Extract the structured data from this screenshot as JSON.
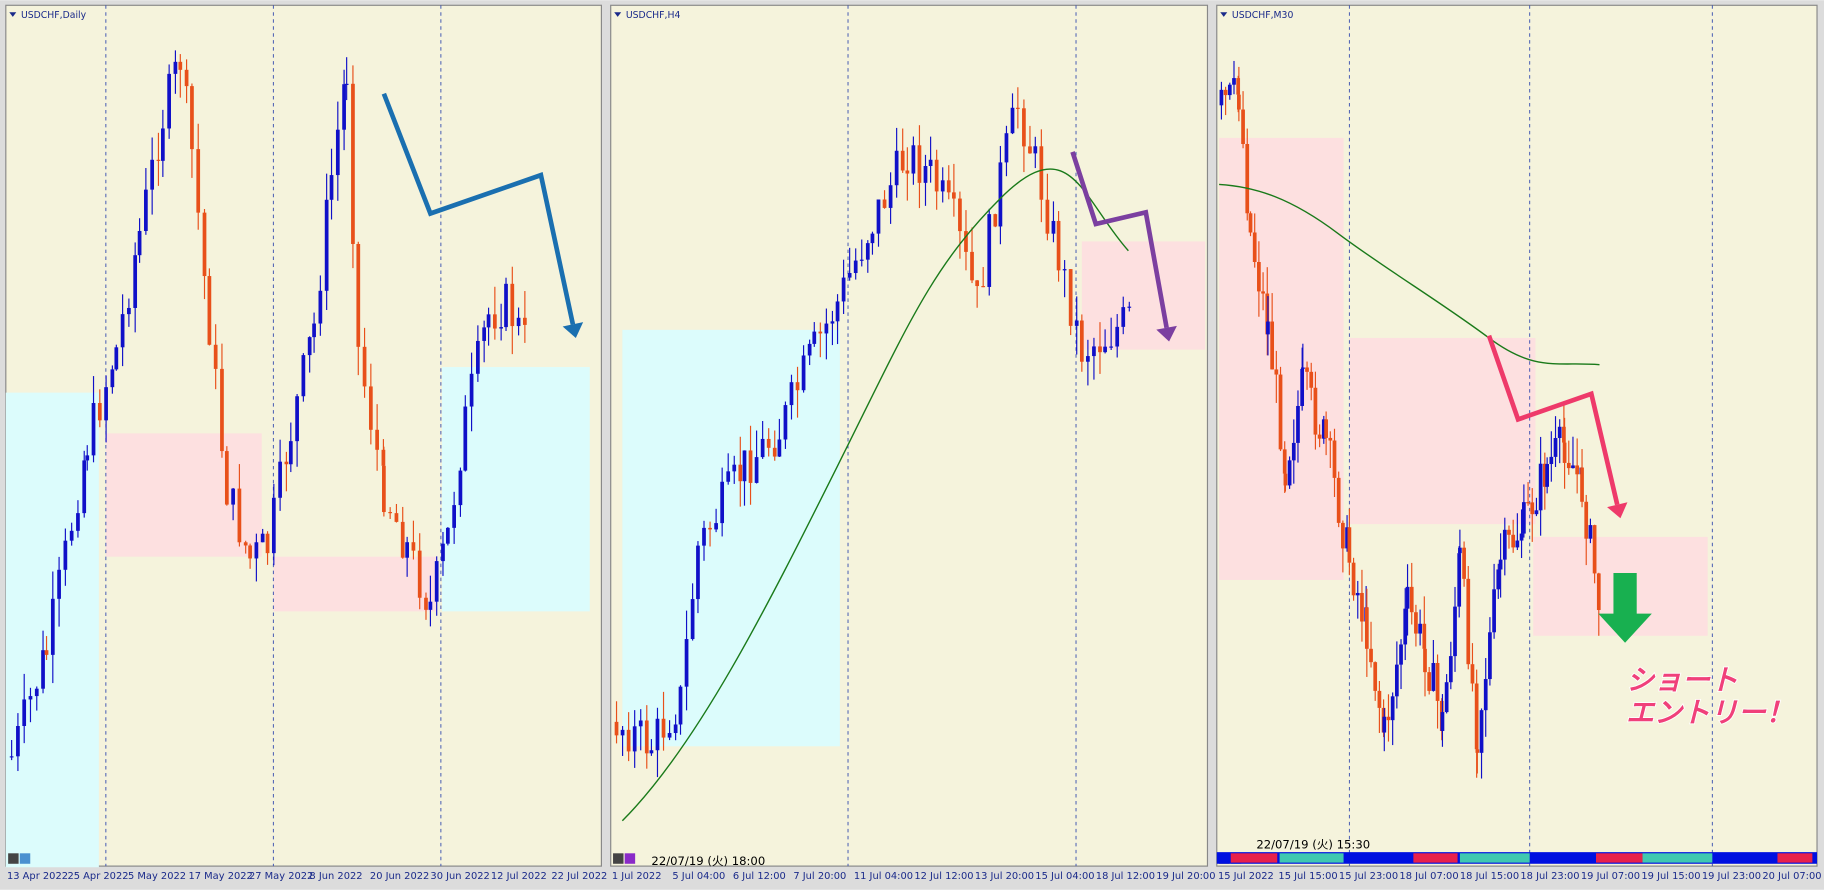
{
  "panels": [
    {
      "title": "USDCHF,Daily",
      "x_labels": [
        "13 Apr 2022",
        "25 Apr 2022",
        "5 May 2022",
        "17 May 2022",
        "27 May 2022",
        "8 Jun 2022",
        "20 Jun 2022",
        "30 Jun 2022",
        "12 Jul 2022",
        "22 Jul 2022"
      ]
    },
    {
      "title": "USDCHF,H4",
      "timestamp": "22/07/19 (火) 18:00",
      "x_labels": [
        "1 Jul 2022",
        "5 Jul 04:00",
        "6 Jul 12:00",
        "7 Jul 20:00",
        "11 Jul 04:00",
        "12 Jul 12:00",
        "13 Jul 20:00",
        "15 Jul 04:00",
        "18 Jul 12:00",
        "19 Jul 20:00"
      ]
    },
    {
      "title": "USDCHF,M30",
      "timestamp": "22/07/19 (火) 15:30",
      "x_labels": [
        "15 Jul 2022",
        "15 Jul 15:00",
        "15 Jul 23:00",
        "18 Jul 07:00",
        "18 Jul 15:00",
        "18 Jul 23:00",
        "19 Jul 07:00",
        "19 Jul 15:00",
        "19 Jul 23:00",
        "20 Jul 07:00"
      ],
      "annotation": [
        "ショート",
        "エントリー！"
      ]
    }
  ]
}
